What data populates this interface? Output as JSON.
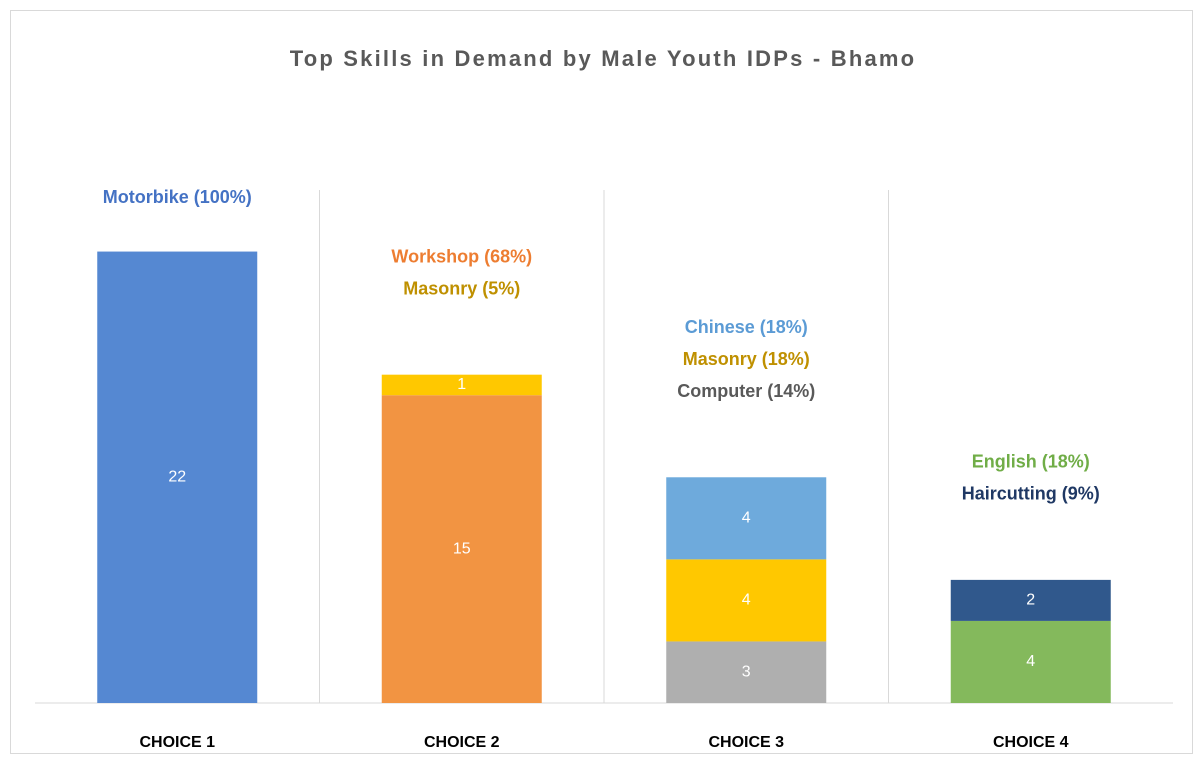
{
  "chart_data": {
    "type": "stacked-bar",
    "title": "Top Skills in Demand by Male Youth IDPs - Bhamo",
    "categories": [
      "CHOICE 1",
      "CHOICE 2",
      "CHOICE 3",
      "CHOICE 4"
    ],
    "ylim": [
      0,
      25
    ],
    "series": [
      {
        "color": "#5588d2",
        "values": [
          22,
          null,
          null,
          null
        ]
      },
      {
        "color": "#f29442",
        "values": [
          null,
          15,
          null,
          null
        ]
      },
      {
        "color": "#ffc800",
        "values": [
          null,
          1,
          null,
          null
        ]
      },
      {
        "color": "#afafaf",
        "values": [
          null,
          null,
          3,
          null
        ]
      },
      {
        "color": "#ffc800",
        "values": [
          null,
          null,
          4,
          null
        ]
      },
      {
        "color": "#6eaadc",
        "values": [
          null,
          null,
          4,
          null
        ]
      },
      {
        "color": "#84b95c",
        "values": [
          null,
          null,
          null,
          4
        ]
      },
      {
        "color": "#30588c",
        "values": [
          null,
          null,
          null,
          2
        ]
      }
    ],
    "annotations": [
      {
        "category": "CHOICE 1",
        "text": "Motorbike (100%)",
        "color": "#4472c4"
      },
      {
        "category": "CHOICE 2",
        "text": "Workshop (68%)",
        "color": "#ed7d31"
      },
      {
        "category": "CHOICE 2",
        "text": "Masonry (5%)",
        "color": "#bf9000"
      },
      {
        "category": "CHOICE 3",
        "text": "Chinese (18%)",
        "color": "#5b9bd5"
      },
      {
        "category": "CHOICE 3",
        "text": "Masonry (18%)",
        "color": "#bf9000"
      },
      {
        "category": "CHOICE 3",
        "text": "Computer (14%)",
        "color": "#595959"
      },
      {
        "category": "CHOICE 4",
        "text": "English (18%)",
        "color": "#70ad47"
      },
      {
        "category": "CHOICE 4",
        "text": "Haircutting (9%)",
        "color": "#1f3864"
      }
    ]
  }
}
